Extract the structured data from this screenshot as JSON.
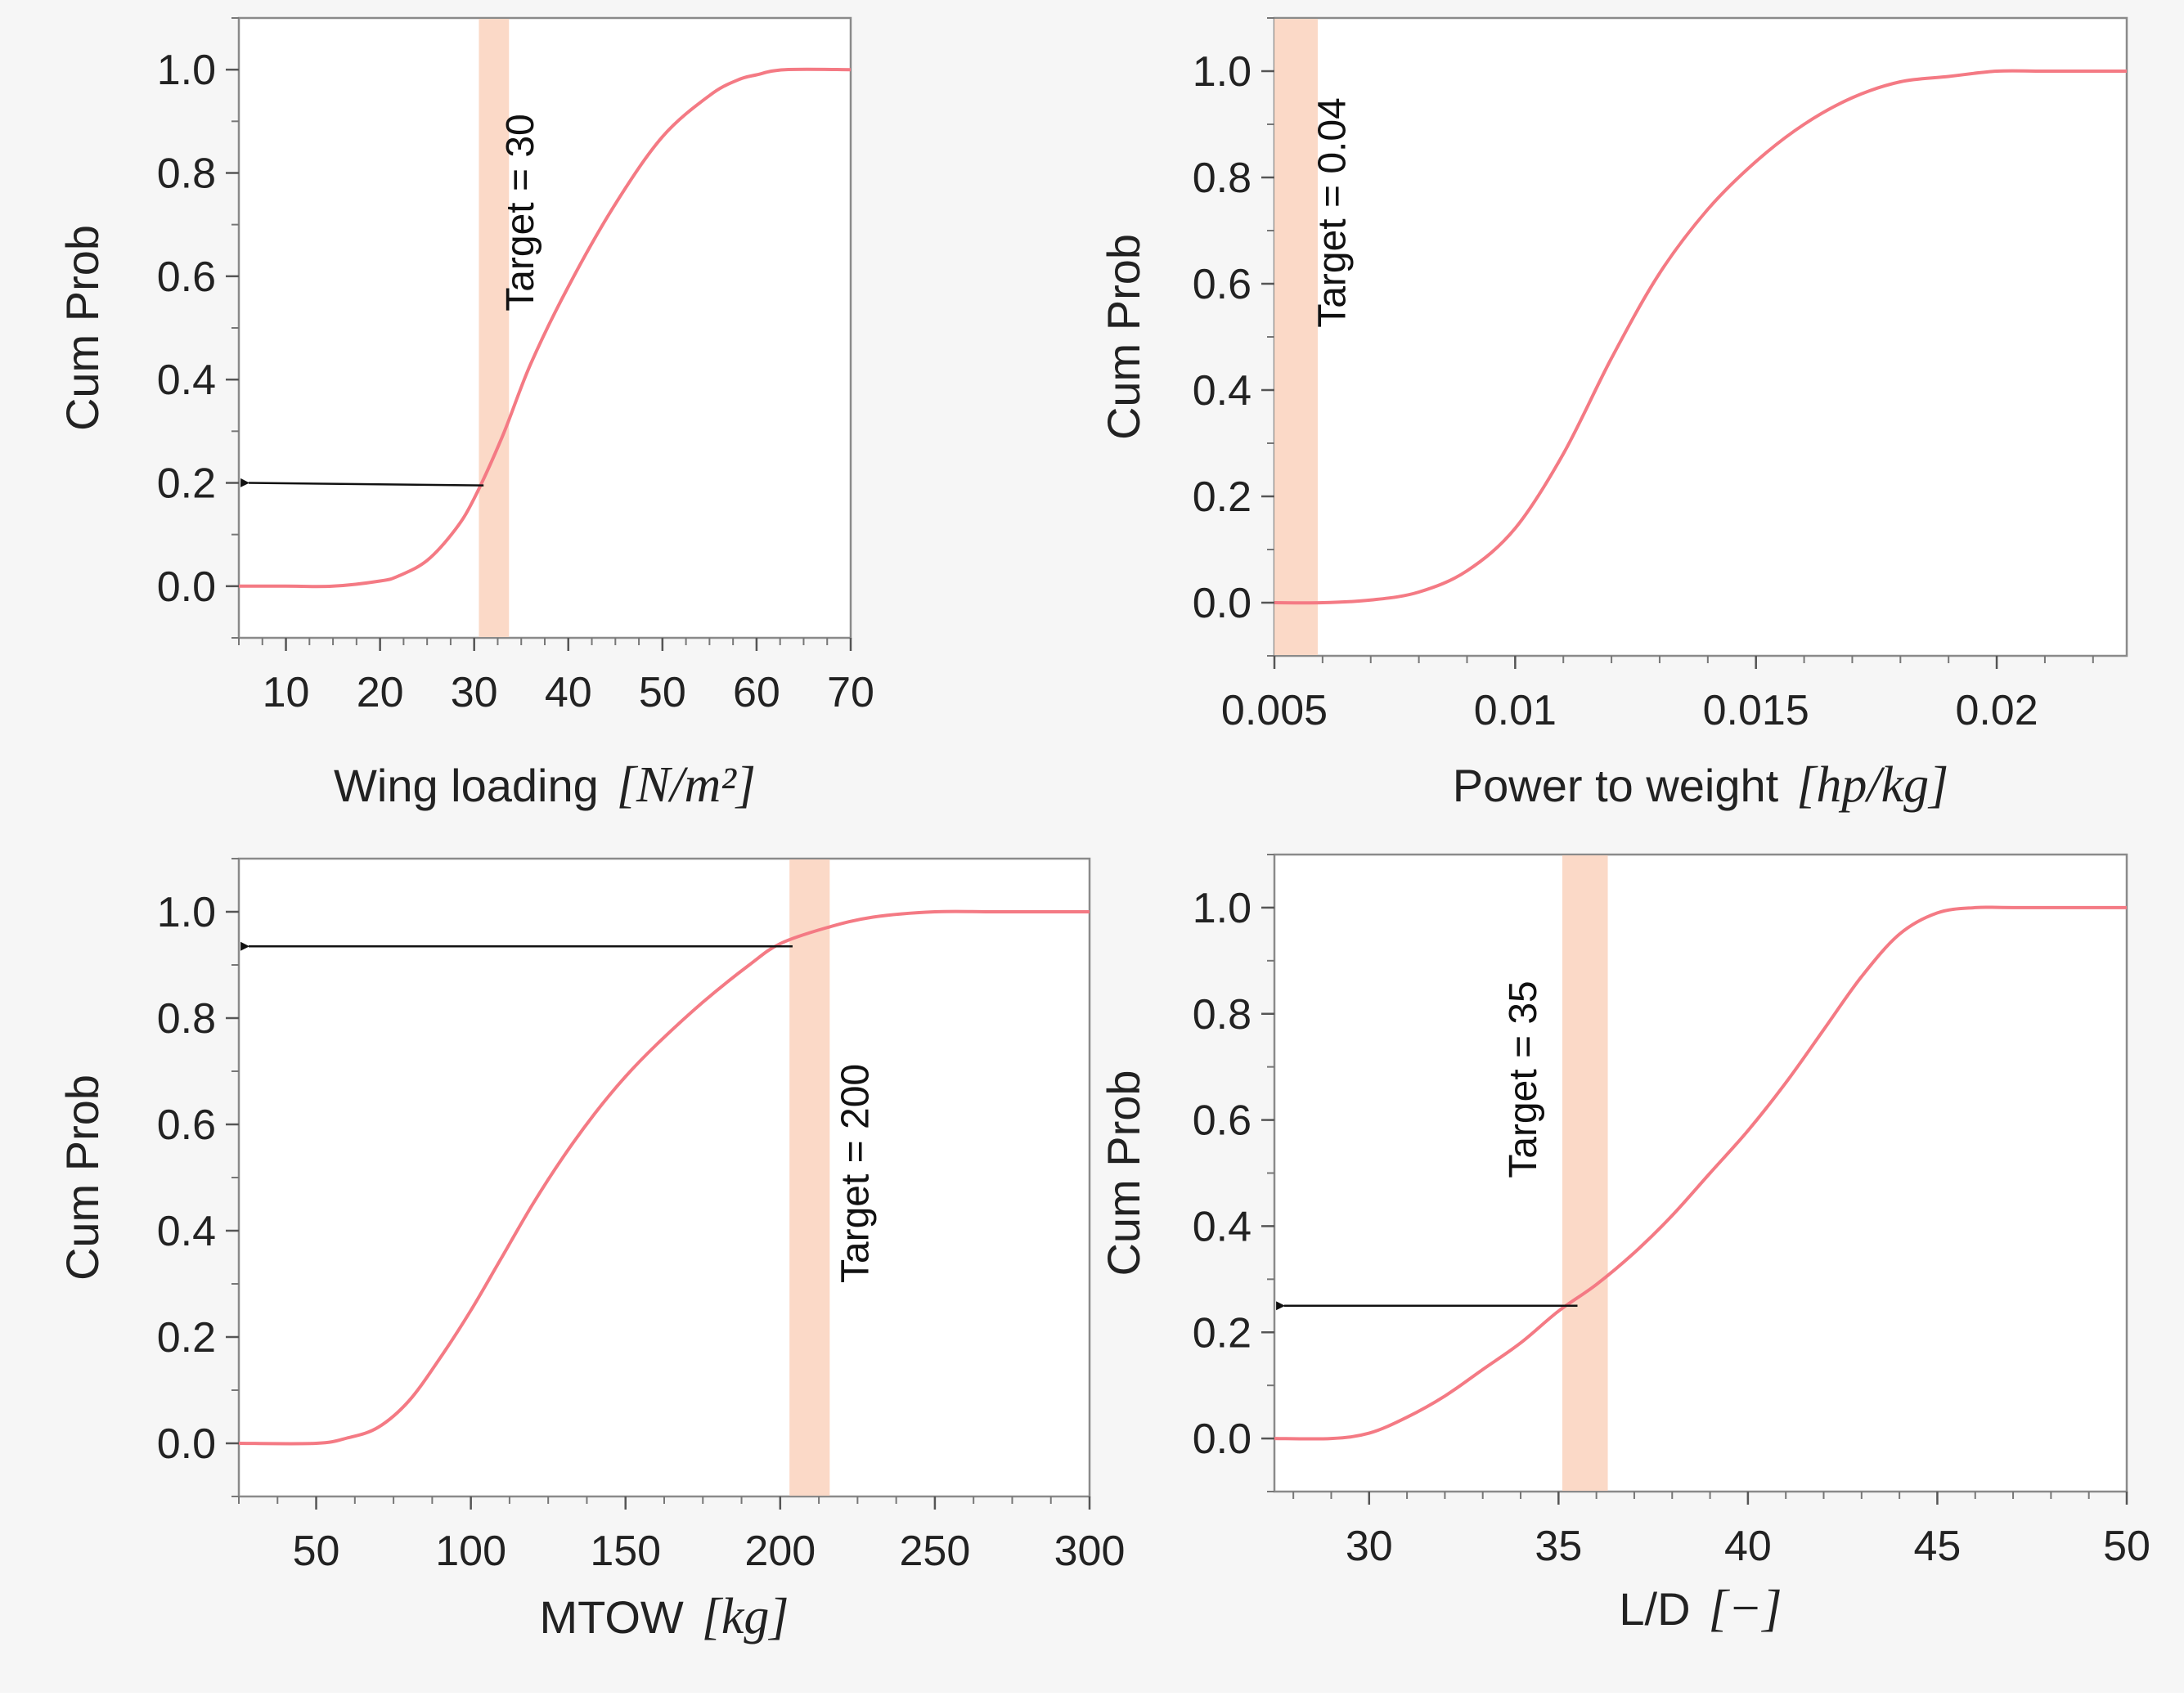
{
  "figure": {
    "colors": {
      "curve": "#f47a84",
      "band": "#fbd9c7",
      "arrow": "#111111"
    }
  },
  "chart_data": [
    {
      "type": "line",
      "id": "wing",
      "ylabel": "Cum Prob",
      "xlabel": "Wing loading",
      "xunit_text": "[N/m²]",
      "xlim": [
        5,
        70
      ],
      "ylim": [
        -0.1,
        1.1
      ],
      "xticks": [
        10,
        20,
        30,
        40,
        50,
        60,
        70
      ],
      "xtick_labels": [
        "10",
        "20",
        "30",
        "40",
        "50",
        "60",
        "70"
      ],
      "yticks": [
        0,
        0.2,
        0.4,
        0.6,
        0.8,
        1.0
      ],
      "ytick_labels": [
        "0.0",
        "0.2",
        "0.4",
        "0.6",
        "0.8",
        "1.0"
      ],
      "x_minor_step": 2.5,
      "y_minor_step": 0.1,
      "series": [
        {
          "name": "Cum Prob",
          "x": [
            5,
            10,
            15,
            20,
            22,
            25,
            28,
            30,
            33,
            36,
            40,
            45,
            50,
            55,
            58,
            60,
            63,
            70
          ],
          "y": [
            0.0,
            0.0,
            0.0,
            0.01,
            0.02,
            0.05,
            0.11,
            0.17,
            0.29,
            0.43,
            0.58,
            0.74,
            0.87,
            0.95,
            0.98,
            0.99,
            1.0,
            1.0
          ]
        }
      ],
      "target": {
        "label": "Target = 30",
        "value": 30,
        "band": [
          30.5,
          33.7
        ]
      },
      "arrow": {
        "from_x": 31,
        "to_x": 5,
        "y_start": 0.195,
        "y_end": 0.2
      }
    },
    {
      "type": "line",
      "id": "power",
      "ylabel": "Cum Prob",
      "xlabel": "Power to weight",
      "xunit_text": "[hp/kg]",
      "xlim": [
        0.005,
        0.0227
      ],
      "ylim": [
        -0.1,
        1.1
      ],
      "xticks": [
        0.005,
        0.01,
        0.015,
        0.02
      ],
      "xtick_labels": [
        "0.005",
        "0.01",
        "0.015",
        "0.02"
      ],
      "yticks": [
        0,
        0.2,
        0.4,
        0.6,
        0.8,
        1.0
      ],
      "ytick_labels": [
        "0.0",
        "0.2",
        "0.4",
        "0.6",
        "0.8",
        "1.0"
      ],
      "x_minor_step": 0.001,
      "y_minor_step": 0.1,
      "series": [
        {
          "name": "Cum Prob",
          "x": [
            0.005,
            0.006,
            0.007,
            0.008,
            0.009,
            0.01,
            0.011,
            0.012,
            0.013,
            0.014,
            0.015,
            0.016,
            0.017,
            0.018,
            0.019,
            0.02,
            0.021,
            0.0227
          ],
          "y": [
            0.0,
            0.0,
            0.005,
            0.02,
            0.06,
            0.14,
            0.28,
            0.46,
            0.62,
            0.74,
            0.83,
            0.9,
            0.95,
            0.98,
            0.99,
            1.0,
            1.0,
            1.0
          ]
        }
      ],
      "target": {
        "label": "Target = 0.04",
        "value": 0.04,
        "band": [
          0.005,
          0.0059
        ]
      }
    },
    {
      "type": "line",
      "id": "mtow",
      "ylabel": "Cum Prob",
      "xlabel": "MTOW",
      "xunit_text": "[kg]",
      "xlim": [
        25,
        300
      ],
      "ylim": [
        -0.1,
        1.1
      ],
      "xticks": [
        50,
        100,
        150,
        200,
        250,
        300
      ],
      "xtick_labels": [
        "50",
        "100",
        "150",
        "200",
        "250",
        "300"
      ],
      "yticks": [
        0,
        0.2,
        0.4,
        0.6,
        0.8,
        1.0
      ],
      "ytick_labels": [
        "0.0",
        "0.2",
        "0.4",
        "0.6",
        "0.8",
        "1.0"
      ],
      "x_minor_step": 12.5,
      "y_minor_step": 0.1,
      "series": [
        {
          "name": "Cum Prob",
          "x": [
            25,
            50,
            60,
            70,
            80,
            90,
            100,
            110,
            120,
            130,
            140,
            150,
            160,
            175,
            190,
            200,
            215,
            230,
            250,
            270,
            300
          ],
          "y": [
            0.0,
            0.0,
            0.01,
            0.03,
            0.08,
            0.16,
            0.25,
            0.35,
            0.45,
            0.54,
            0.62,
            0.69,
            0.75,
            0.83,
            0.9,
            0.94,
            0.97,
            0.99,
            1.0,
            1.0,
            1.0
          ]
        }
      ],
      "target": {
        "label": "Target = 200",
        "value": 200,
        "band": [
          203,
          216
        ]
      },
      "arrow": {
        "from_x": 204,
        "to_x": 25,
        "y_start": 0.935,
        "y_end": 0.935
      }
    },
    {
      "type": "line",
      "id": "ld",
      "ylabel": "Cum Prob",
      "xlabel": "L/D",
      "xunit_text": "[−]",
      "xlim": [
        27.5,
        50
      ],
      "ylim": [
        -0.1,
        1.1
      ],
      "xticks": [
        30,
        35,
        40,
        45,
        50
      ],
      "xtick_labels": [
        "30",
        "35",
        "40",
        "45",
        "50"
      ],
      "yticks": [
        0,
        0.2,
        0.4,
        0.6,
        0.8,
        1.0
      ],
      "ytick_labels": [
        "0.0",
        "0.2",
        "0.4",
        "0.6",
        "0.8",
        "1.0"
      ],
      "x_minor_step": 1,
      "y_minor_step": 0.1,
      "series": [
        {
          "name": "Cum Prob",
          "x": [
            27.5,
            29,
            30,
            31,
            32,
            33,
            34,
            35,
            36,
            37,
            38,
            39,
            40,
            41,
            42,
            43,
            44,
            45,
            46,
            47,
            50
          ],
          "y": [
            0.0,
            0.0,
            0.01,
            0.04,
            0.08,
            0.13,
            0.18,
            0.24,
            0.29,
            0.35,
            0.42,
            0.5,
            0.58,
            0.67,
            0.77,
            0.87,
            0.95,
            0.99,
            1.0,
            1.0,
            1.0
          ]
        }
      ],
      "target": {
        "label": "Target = 35",
        "value": 35,
        "band": [
          35.1,
          36.3
        ]
      },
      "arrow": {
        "from_x": 35.5,
        "to_x": 27.5,
        "y_start": 0.25,
        "y_end": 0.25
      }
    }
  ]
}
